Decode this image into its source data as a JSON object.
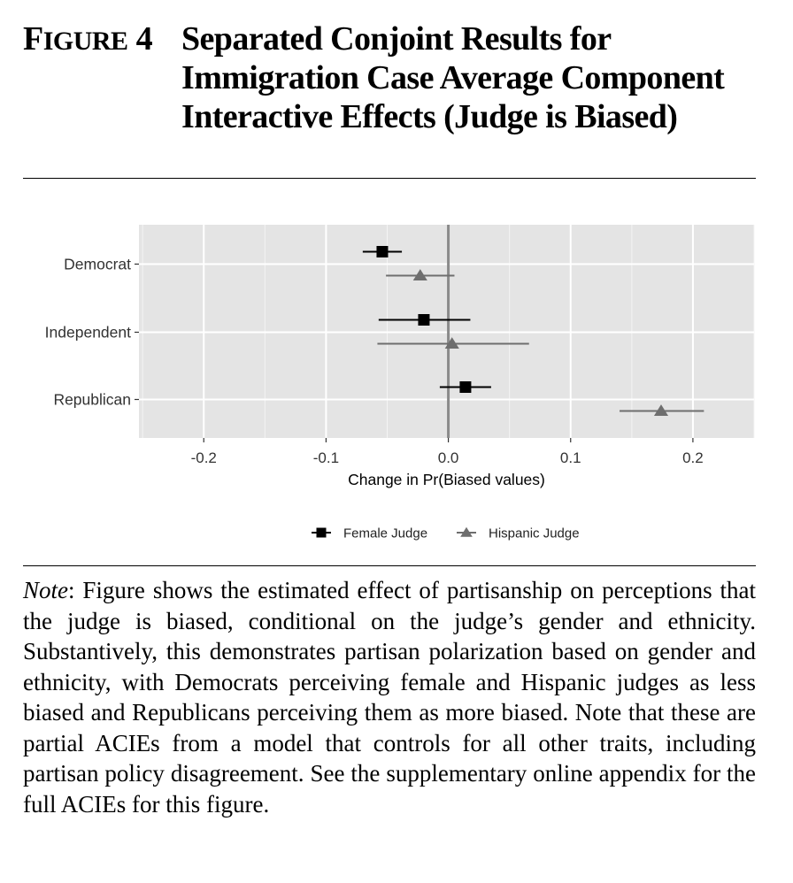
{
  "figure": {
    "label_first": "F",
    "label_rest": "IGURE",
    "label_num": "4",
    "title": "Separated Conjoint Results for Immigration Case Average Component Interactive Effects (Judge is Biased)"
  },
  "note": {
    "lead": "Note",
    "text": ": Figure shows the estimated effect of partisanship on perceptions that the judge is biased, conditional on the judge’s gender and ethnicity. Substantively, this demonstrates partisan polarization based on gender and ethnicity, with Democrats perceiving female and Hispanic judges as less biased and Republicans perceiving them as more biased. Note that these are partial ACIEs from a model that controls for all other traits, including partisan policy disagreement. See the supplementary online appendix for the full ACIEs for this figure."
  },
  "chart_data": {
    "type": "scatter",
    "orientation": "horizontal-dot-whisker",
    "xlabel": "Change in Pr(Biased values)",
    "xlim": [
      -0.253,
      0.25
    ],
    "xticks": [
      -0.2,
      -0.1,
      0.0,
      0.1,
      0.2
    ],
    "xtick_labels": [
      "-0.2",
      "-0.1",
      "0.0",
      "0.1",
      "0.2"
    ],
    "categories": [
      "Democrat",
      "Independent",
      "Republican"
    ],
    "reference_line_x": 0,
    "grid": true,
    "legend_position": "bottom",
    "series": [
      {
        "name": "Female Judge",
        "marker": "square",
        "color": "#000000",
        "estimates": [
          -0.054,
          -0.02,
          0.014
        ],
        "ci_low": [
          -0.07,
          -0.057,
          -0.007
        ],
        "ci_high": [
          -0.038,
          0.018,
          0.035
        ]
      },
      {
        "name": "Hispanic Judge",
        "marker": "triangle",
        "color": "#6e6e6e",
        "estimates": [
          -0.023,
          0.003,
          0.174
        ],
        "ci_low": [
          -0.051,
          -0.058,
          0.14
        ],
        "ci_high": [
          0.005,
          0.066,
          0.209
        ]
      }
    ]
  }
}
